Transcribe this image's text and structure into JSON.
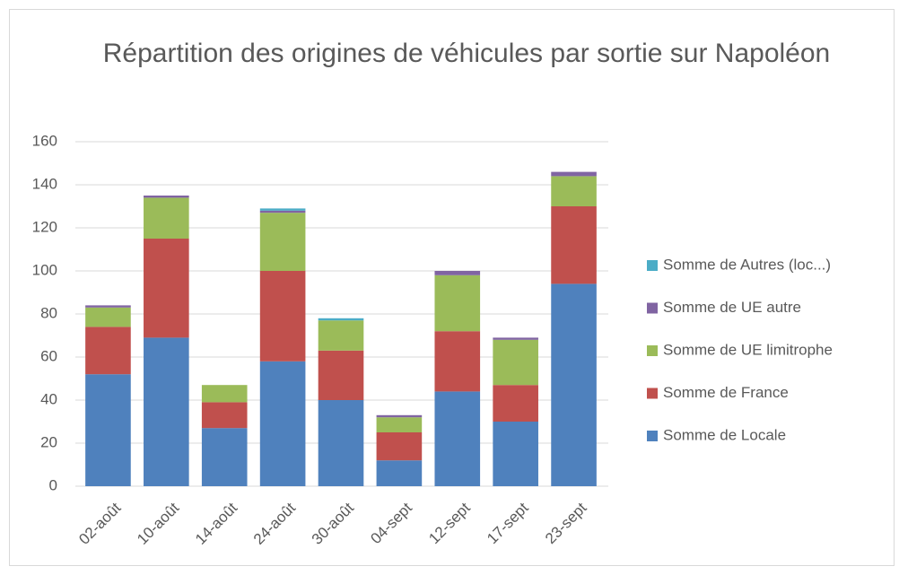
{
  "chart_data": {
    "type": "stacked_bar",
    "title": "Répartition des origines de véhicules par sortie sur Napoléon",
    "categories": [
      "02-août",
      "10-août",
      "14-août",
      "24-août",
      "30-août",
      "04-sept",
      "12-sept",
      "17-sept",
      "23-sept"
    ],
    "series": [
      {
        "name": "Somme de Locale",
        "color": "#4f81bd",
        "values": [
          52,
          69,
          27,
          58,
          40,
          12,
          44,
          30,
          94
        ]
      },
      {
        "name": "Somme de France",
        "color": "#c0504d",
        "values": [
          22,
          46,
          12,
          42,
          23,
          13,
          28,
          17,
          36
        ]
      },
      {
        "name": "Somme de UE limitrophe",
        "color": "#9bbb59",
        "values": [
          9,
          19,
          8,
          27,
          14,
          7,
          26,
          21,
          14
        ]
      },
      {
        "name": "Somme de UE autre",
        "color": "#8064a2",
        "values": [
          1,
          1,
          0,
          1,
          0,
          1,
          2,
          1,
          2
        ]
      },
      {
        "name": "Somme de Autres (loc...)",
        "color": "#4bacc6",
        "values": [
          0,
          0,
          0,
          1,
          1,
          0,
          0,
          0,
          0
        ]
      }
    ],
    "ylim": [
      0,
      160
    ],
    "yticks": [
      0,
      20,
      40,
      60,
      80,
      100,
      120,
      140,
      160
    ],
    "grid": true,
    "legend": "right"
  }
}
